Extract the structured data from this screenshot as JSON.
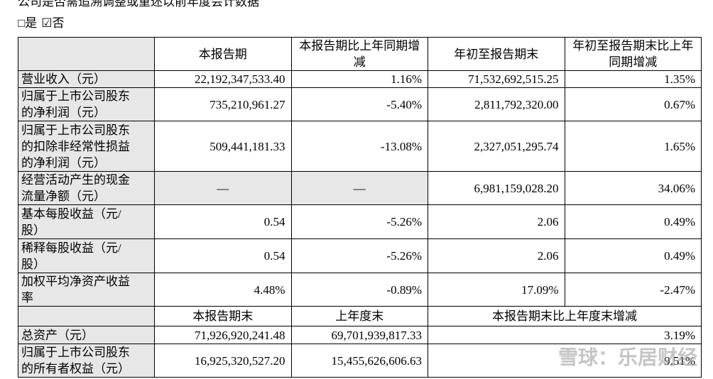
{
  "header": {
    "title": "公司是否需追溯调整或重述以前年度会计数据",
    "options": [
      "□是",
      "☑否"
    ]
  },
  "table": {
    "columns": [
      "本报告期",
      "本报告期比上年同期增减",
      "年初至报告期末",
      "年初至报告期末比上年同期增减"
    ],
    "rows": [
      [
        "营业收入（元）",
        "22,192,347,533.40",
        "1.16%",
        "71,532,692,515.25",
        "1.35%"
      ],
      [
        "归属于上市公司股东的净利润（元）",
        "735,210,961.27",
        "-5.40%",
        "2,811,792,320.00",
        "0.67%"
      ],
      [
        "归属于上市公司股东的扣除非经常性损益的净利润（元）",
        "509,441,181.33",
        "-13.08%",
        "2,327,051,295.74",
        "1.65%"
      ],
      [
        "经营活动产生的现金流量净额（元）",
        "—",
        "—",
        "6,981,159,028.20",
        "34.06%"
      ],
      [
        "基本每股收益（元/股）",
        "0.54",
        "-5.26%",
        "2.06",
        "0.49%"
      ],
      [
        "稀释每股收益（元/股）",
        "0.54",
        "-5.26%",
        "2.06",
        "0.49%"
      ],
      [
        "加权平均净资产收益率",
        "4.48%",
        "-0.89%",
        "17.09%",
        "-2.47%"
      ]
    ],
    "sub_columns": [
      "本报告期末",
      "上年度末",
      "本报告期末比上年度末增减"
    ],
    "sub_rows": [
      [
        "总资产（元）",
        "71,926,920,241.48",
        "69,701,939,817.33",
        "3.19%"
      ],
      [
        "归属于上市公司股东的所有者权益（元）",
        "16,925,320,527.20",
        "15,455,626,606.63",
        "9.51%"
      ]
    ]
  },
  "watermark": "雪球：乐居财经"
}
